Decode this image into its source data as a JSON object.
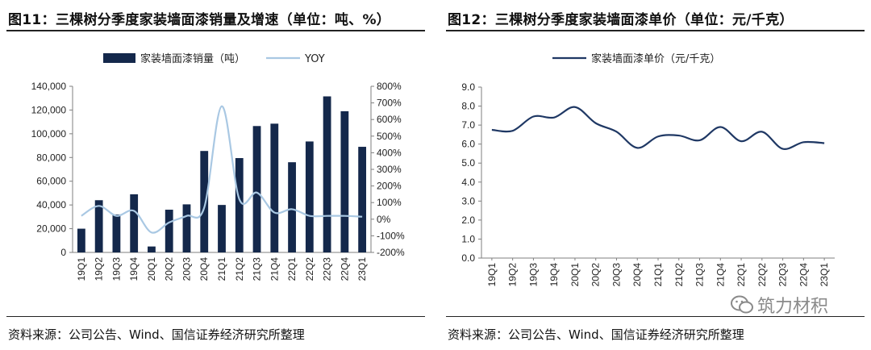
{
  "left": {
    "title": "图11：三棵树分季度家装墙面漆销量及增速（单位：吨、%）",
    "source": "资料来源：公司公告、Wind、国信证券经济研究所整理"
  },
  "right": {
    "title": "图12：三棵树分季度家装墙面漆单价（单位：元/千克）",
    "source": "资料来源：公司公告、Wind、国信证券经济研究所整理"
  },
  "watermark": {
    "text": "筑力材积",
    "icon": "wechat-icon"
  },
  "colors": {
    "bar": "#14284b",
    "yoy": "#a9c8e3",
    "price": "#1f3864",
    "axis": "#7f7f7f"
  },
  "chart_data": [
    {
      "type": "bar",
      "categories": [
        "19Q1",
        "19Q2",
        "19Q3",
        "19Q4",
        "20Q1",
        "20Q2",
        "20Q3",
        "20Q4",
        "21Q1",
        "21Q2",
        "21Q3",
        "21Q4",
        "22Q1",
        "22Q2",
        "22Q3",
        "22Q4",
        "23Q1"
      ],
      "series": [
        {
          "name": "家装墙面漆销量（吨）",
          "kind": "bar",
          "axis": "left",
          "values": [
            20000,
            44000,
            32000,
            49000,
            5000,
            36000,
            40500,
            85500,
            40000,
            79500,
            106500,
            108500,
            76000,
            93500,
            131500,
            119000,
            89000
          ]
        },
        {
          "name": "YOY",
          "kind": "line",
          "axis": "right",
          "values": [
            20,
            80,
            20,
            50,
            -80,
            -20,
            20,
            70,
            680,
            120,
            160,
            40,
            60,
            20,
            20,
            20,
            15
          ]
        }
      ],
      "yticks_left": [
        "0",
        "20,000",
        "40,000",
        "60,000",
        "80,000",
        "100,000",
        "120,000",
        "140,000"
      ],
      "yticks_right": [
        "-200%",
        "-100%",
        "0%",
        "100%",
        "200%",
        "300%",
        "400%",
        "500%",
        "600%",
        "700%",
        "800%"
      ],
      "ylim": [
        0,
        140000
      ],
      "ylim_right": [
        -200,
        800
      ],
      "legend": "top-center",
      "grid": false
    },
    {
      "type": "line",
      "categories": [
        "19Q1",
        "19Q2",
        "19Q3",
        "19Q4",
        "20Q1",
        "20Q2",
        "20Q3",
        "20Q4",
        "21Q1",
        "21Q2",
        "21Q3",
        "21Q4",
        "22Q1",
        "22Q2",
        "22Q3",
        "22Q4",
        "23Q1"
      ],
      "series": [
        {
          "name": "家装墙面漆单价（元/千克）",
          "values": [
            6.75,
            6.7,
            7.45,
            7.4,
            7.95,
            7.1,
            6.65,
            5.8,
            6.4,
            6.45,
            6.2,
            6.9,
            6.15,
            6.65,
            5.75,
            6.1,
            6.05
          ]
        }
      ],
      "yticks": [
        "0.0",
        "1.0",
        "2.0",
        "3.0",
        "4.0",
        "5.0",
        "6.0",
        "7.0",
        "8.0",
        "9.0"
      ],
      "ylim": [
        0,
        9
      ],
      "legend": "top-center",
      "grid": false
    }
  ]
}
